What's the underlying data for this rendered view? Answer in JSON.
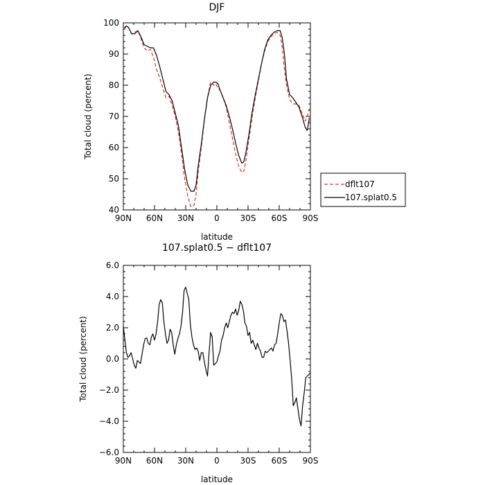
{
  "chart_data": [
    {
      "type": "line",
      "title": "DJF",
      "xlabel": "latitude",
      "ylabel": "Total cloud (percent)",
      "xlim": [
        90,
        -90
      ],
      "ylim": [
        40,
        100
      ],
      "xticks": [
        90,
        60,
        30,
        0,
        -30,
        -60,
        -90
      ],
      "xticklabels": [
        "90N",
        "60N",
        "30N",
        "0",
        "30S",
        "60S",
        "90S"
      ],
      "yticks": [
        40,
        50,
        60,
        70,
        80,
        90,
        100
      ],
      "yticklabels": [
        "40",
        "50",
        "60",
        "70",
        "80",
        "90",
        "100"
      ],
      "grid": false,
      "legend_position": "right",
      "series": [
        {
          "name": "dflt107",
          "color": "#e8291d",
          "style": "dashed",
          "x": [
            89,
            87,
            85,
            82,
            79,
            76,
            73,
            70,
            67,
            64,
            61,
            58,
            55,
            52,
            49,
            46,
            43,
            40,
            37,
            34,
            31,
            28,
            25,
            22,
            20,
            18,
            15,
            12,
            9,
            6,
            3,
            1,
            -1,
            -3,
            -6,
            -9,
            -12,
            -15,
            -18,
            -21,
            -24,
            -26,
            -28,
            -31,
            -34,
            -37,
            -40,
            -43,
            -46,
            -49,
            -52,
            -55,
            -58,
            -61,
            -63,
            -65,
            -67,
            -70,
            -73,
            -76,
            -79,
            -82,
            -85,
            -87,
            -89
          ],
          "y": [
            98,
            99,
            98.5,
            96.5,
            97,
            97.5,
            95,
            92,
            91,
            91.5,
            89,
            85,
            82.5,
            79,
            76,
            76.5,
            73.5,
            70,
            65,
            58,
            50,
            44.5,
            41,
            41.5,
            45,
            52,
            60,
            69,
            76,
            81,
            80,
            80.5,
            79,
            78.5,
            76,
            73,
            68,
            63,
            58,
            54,
            52,
            52.5,
            56,
            63,
            70,
            76,
            81.5,
            87,
            91,
            94,
            95.5,
            96.5,
            97,
            96,
            92,
            85,
            80,
            75.5,
            74,
            74,
            73.5,
            71,
            68.5,
            70,
            72.5
          ]
        },
        {
          "name": "107.splat0.5",
          "color": "#000000",
          "style": "solid",
          "x": [
            89,
            87,
            85,
            82,
            79,
            76,
            73,
            70,
            67,
            64,
            61,
            58,
            55,
            52,
            49,
            46,
            43,
            40,
            37,
            34,
            31,
            28,
            25,
            22,
            20,
            18,
            15,
            12,
            9,
            6,
            3,
            1,
            -1,
            -3,
            -6,
            -9,
            -12,
            -15,
            -18,
            -21,
            -24,
            -26,
            -28,
            -31,
            -34,
            -37,
            -40,
            -43,
            -46,
            -49,
            -52,
            -55,
            -58,
            -61,
            -63,
            -65,
            -67,
            -70,
            -73,
            -76,
            -79,
            -82,
            -85,
            -87,
            -89
          ],
          "y": [
            98.5,
            99,
            98.5,
            96.5,
            96.5,
            97.5,
            95.5,
            93,
            92.5,
            92,
            92,
            89.5,
            86,
            82,
            78,
            77,
            75,
            71,
            67,
            60,
            53,
            48,
            46,
            46,
            48,
            54,
            61,
            69,
            76,
            80,
            81,
            81,
            80.5,
            78.5,
            76,
            73.5,
            70,
            66,
            61.5,
            57.5,
            55,
            55.5,
            58.5,
            64.5,
            71.5,
            77,
            82,
            87,
            91.5,
            94.5,
            96,
            97,
            97.5,
            97.5,
            95,
            90,
            82,
            77,
            76,
            74.5,
            73,
            70,
            66.5,
            65.5,
            69.5
          ]
        }
      ]
    },
    {
      "type": "line",
      "title": "107.splat0.5 − dflt107",
      "xlabel": "latitude",
      "ylabel": "Total cloud (percent)",
      "xlim": [
        90,
        -90
      ],
      "ylim": [
        -6,
        6
      ],
      "xticks": [
        90,
        60,
        30,
        0,
        -30,
        -60,
        -90
      ],
      "xticklabels": [
        "90N",
        "60N",
        "30N",
        "0",
        "30S",
        "60S",
        "90S"
      ],
      "yticks": [
        -6,
        -4,
        -2,
        0,
        2,
        4,
        6
      ],
      "yticklabels": [
        "−6.0",
        "−4.0",
        "−2.0",
        "0.0",
        "2.0",
        "4.0",
        "6.0"
      ],
      "grid": false,
      "series": [
        {
          "color": "#000000",
          "style": "solid",
          "x": [
            90,
            88.5,
            87,
            85.5,
            84,
            82.5,
            81,
            79.5,
            78,
            76.5,
            75,
            73.5,
            72,
            70.5,
            69,
            67.5,
            66,
            64.5,
            63,
            61.5,
            60,
            58.5,
            57,
            55.5,
            54,
            52.5,
            51,
            49.5,
            48,
            46.5,
            45,
            43.5,
            42,
            40.5,
            39,
            37.5,
            36,
            34.5,
            33,
            31.5,
            30,
            28.5,
            27,
            25.5,
            24,
            22.5,
            21,
            19.5,
            18,
            16.5,
            15,
            13.5,
            12,
            10.5,
            9,
            7.5,
            6,
            4.5,
            3,
            1.5,
            0,
            -1.5,
            -3,
            -4.5,
            -6,
            -7.5,
            -9,
            -10.5,
            -12,
            -13.5,
            -15,
            -16.5,
            -18,
            -19.5,
            -21,
            -22.5,
            -24,
            -25.5,
            -27,
            -28.5,
            -30,
            -31.5,
            -33,
            -34.5,
            -36,
            -37.5,
            -39,
            -40.5,
            -42,
            -43.5,
            -45,
            -46.5,
            -48,
            -49.5,
            -51,
            -52.5,
            -54,
            -55.5,
            -57,
            -58.5,
            -60,
            -61.5,
            -63,
            -64.5,
            -66,
            -67.5,
            -69,
            -70.5,
            -72,
            -73.5,
            -75,
            -76.5,
            -78,
            -79.5,
            -81,
            -82.5,
            -84,
            -85.5,
            -87,
            -88.5,
            -90
          ],
          "y": [
            2.1,
            1.2,
            0.4,
            0.1,
            0.2,
            0.4,
            0.0,
            -0.4,
            -0.6,
            -0.1,
            -0.2,
            -0.3,
            0.3,
            0.9,
            1.3,
            1.35,
            1.0,
            0.9,
            1.4,
            1.6,
            1.2,
            1.6,
            2.4,
            3.5,
            3.8,
            3.6,
            2.4,
            1.6,
            1.0,
            1.2,
            1.9,
            1.7,
            0.9,
            0.3,
            0.9,
            1.3,
            1.6,
            2.1,
            3.0,
            4.4,
            4.6,
            4.2,
            3.8,
            2.2,
            1.4,
            0.9,
            0.6,
            0.7,
            0.5,
            -0.1,
            0.4,
            0.4,
            -0.2,
            -0.7,
            -1.1,
            0.4,
            1.7,
            1.4,
            -0.4,
            -0.3,
            -0.2,
            0.2,
            0.5,
            1.2,
            1.5,
            2.0,
            2.3,
            2.0,
            2.4,
            2.8,
            3.0,
            2.9,
            3.2,
            2.8,
            3.1,
            3.7,
            3.5,
            3.1,
            2.3,
            2.1,
            1.5,
            1.7,
            1.0,
            1.2,
            0.9,
            0.6,
            1.0,
            0.7,
            0.5,
            0.1,
            0.1,
            0.5,
            0.4,
            0.5,
            0.6,
            0.7,
            0.5,
            0.9,
            1.0,
            1.6,
            2.3,
            2.9,
            2.8,
            2.4,
            2.5,
            1.8,
            1.0,
            -0.1,
            -1.3,
            -3.0,
            -2.8,
            -2.5,
            -3.2,
            -3.9,
            -4.3,
            -3.0,
            -2.2,
            -1.2,
            -1.1,
            -1.0,
            -0.9
          ]
        }
      ]
    }
  ],
  "legend": {
    "items": [
      {
        "label": "dflt107",
        "color": "#e8291d",
        "style": "dashed"
      },
      {
        "label": "107.splat0.5",
        "color": "#000000",
        "style": "solid"
      }
    ]
  }
}
